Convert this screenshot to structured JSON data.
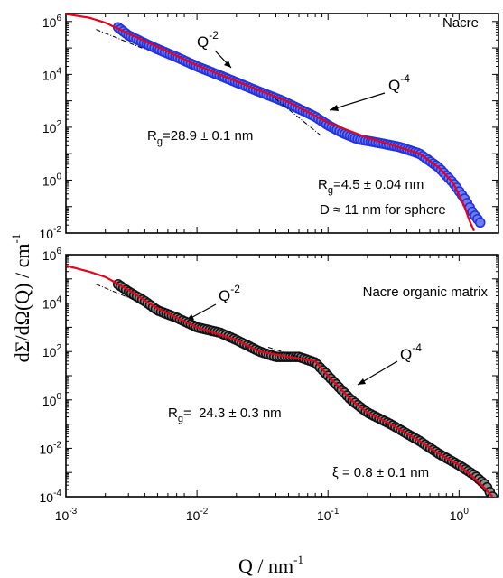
{
  "figure": {
    "ylabel": "dΣ/dΩ(Q) / cm",
    "ylabel_sup": "-1",
    "xlabel": "Q / nm",
    "xlabel_sup": "-1"
  },
  "colors": {
    "fit_line": "#e8001c",
    "nacre_points": "#2233dd",
    "matrix_points": "#111111",
    "guide": "#000000"
  },
  "chart_data": [
    {
      "type": "scatter",
      "panel": "top",
      "title": "Nacre",
      "xscale": "log",
      "yscale": "log",
      "xlim": [
        0.001,
        2
      ],
      "ylim": [
        0.01,
        2000000
      ],
      "yticks": [
        0.01,
        1,
        100,
        10000,
        1000000
      ],
      "ytick_labels": [
        {
          "base": "10",
          "exp": "-2"
        },
        {
          "base": "10",
          "exp": "0"
        },
        {
          "base": "10",
          "exp": "2"
        },
        {
          "base": "10",
          "exp": "4"
        },
        {
          "base": "10",
          "exp": "6"
        }
      ],
      "grid": false,
      "series": [
        {
          "kind": "points",
          "color": "#2233dd",
          "x": [
            0.0025,
            0.003,
            0.004,
            0.005,
            0.007,
            0.01,
            0.015,
            0.02,
            0.03,
            0.045,
            0.06,
            0.08,
            0.1,
            0.13,
            0.17,
            0.25,
            0.35,
            0.5,
            0.7,
            0.9,
            1.1,
            1.3,
            1.45
          ],
          "y": [
            600000,
            300000,
            150000,
            90000,
            45000,
            20000,
            9000,
            5000,
            2200,
            1000,
            500,
            250,
            120,
            60,
            35,
            25,
            18,
            10,
            3,
            0.8,
            0.2,
            0.05,
            0.025
          ]
        },
        {
          "kind": "line",
          "color": "#e8001c",
          "x": [
            0.001,
            0.0015,
            0.002,
            0.003,
            0.005,
            0.01,
            0.02,
            0.05,
            0.1,
            0.2,
            0.3,
            0.5,
            0.7,
            0.9,
            1.1,
            1.2,
            1.3
          ],
          "y": [
            1900000,
            1400000,
            900000,
            350000,
            110000,
            22000,
            5500,
            900,
            150,
            40,
            22,
            10,
            3,
            0.8,
            0.1,
            0.03,
            0.012
          ]
        }
      ],
      "guides": [
        {
          "label": "Q-2",
          "x": [
            0.0017,
            0.004
          ],
          "y": [
            500000,
            90000
          ]
        },
        {
          "label": "Q-4",
          "x": [
            0.035,
            0.09
          ],
          "y": [
            2000,
            45
          ]
        }
      ],
      "annotations": [
        {
          "id": "q2",
          "base": "Q",
          "exp": "-2"
        },
        {
          "id": "q4",
          "base": "Q",
          "exp": "-4"
        },
        {
          "id": "rg1",
          "prefix": "R",
          "sub": "g",
          "value": "=28.9 ± 0.1 nm"
        },
        {
          "id": "rg2",
          "prefix": "R",
          "sub": "g",
          "value": "=4.5 ± 0.04 nm"
        },
        {
          "id": "dsphere",
          "text": "D ≈ 11 nm for sphere"
        }
      ]
    },
    {
      "type": "scatter",
      "panel": "bottom",
      "title": "Nacre organic matrix",
      "xscale": "log",
      "yscale": "log",
      "xlim": [
        0.001,
        2
      ],
      "ylim": [
        0.0001,
        1000000
      ],
      "xticks": [
        0.001,
        0.01,
        0.1,
        1
      ],
      "xtick_labels": [
        {
          "base": "10",
          "exp": "-3"
        },
        {
          "base": "10",
          "exp": "-2"
        },
        {
          "base": "10",
          "exp": "-1"
        },
        {
          "base": "10",
          "exp": "0"
        }
      ],
      "yticks": [
        0.0001,
        0.01,
        1,
        100,
        10000,
        1000000
      ],
      "ytick_labels": [
        {
          "base": "10",
          "exp": "-4"
        },
        {
          "base": "10",
          "exp": "-2"
        },
        {
          "base": "10",
          "exp": "0"
        },
        {
          "base": "10",
          "exp": "2"
        },
        {
          "base": "10",
          "exp": "4"
        },
        {
          "base": "10",
          "exp": "6"
        }
      ],
      "grid": false,
      "series": [
        {
          "kind": "points",
          "color": "#111111",
          "x": [
            0.0025,
            0.003,
            0.004,
            0.005,
            0.007,
            0.01,
            0.015,
            0.02,
            0.03,
            0.04,
            0.06,
            0.08,
            0.1,
            0.15,
            0.2,
            0.3,
            0.5,
            0.7,
            1.0,
            1.3,
            1.6,
            1.8
          ],
          "y": [
            60000,
            30000,
            12000,
            5000,
            2500,
            1000,
            600,
            300,
            100,
            60,
            60,
            35,
            10,
            1,
            0.3,
            0.1,
            0.02,
            0.006,
            0.002,
            0.0008,
            0.0003,
            0.0001
          ]
        },
        {
          "kind": "line",
          "color": "#e8001c",
          "x": [
            0.001,
            0.0015,
            0.002,
            0.003,
            0.005,
            0.01,
            0.02,
            0.03,
            0.05,
            0.08,
            0.1,
            0.15,
            0.2,
            0.3,
            0.5,
            0.7,
            1.0,
            1.3,
            1.6,
            1.8
          ],
          "y": [
            350000,
            200000,
            120000,
            35000,
            6000,
            1000,
            300,
            100,
            60,
            40,
            10,
            1,
            0.3,
            0.1,
            0.02,
            0.006,
            0.002,
            0.0006,
            0.0002,
            0.0001
          ]
        }
      ],
      "guides": [
        {
          "label": "Q-2",
          "x": [
            0.0017,
            0.0035
          ],
          "y": [
            60000,
            12000
          ]
        },
        {
          "label": "Q-4",
          "x": [
            0.035,
            0.09
          ],
          "y": [
            150,
            30
          ]
        }
      ],
      "annotations": [
        {
          "id": "q2",
          "base": "Q",
          "exp": "-2"
        },
        {
          "id": "q4",
          "base": "Q",
          "exp": "-4"
        },
        {
          "id": "rg",
          "prefix": "R",
          "sub": "g",
          "value": "=  24.3 ± 0.3 nm"
        },
        {
          "id": "xi",
          "text": "ξ = 0.8 ± 0.1 nm"
        }
      ]
    }
  ]
}
